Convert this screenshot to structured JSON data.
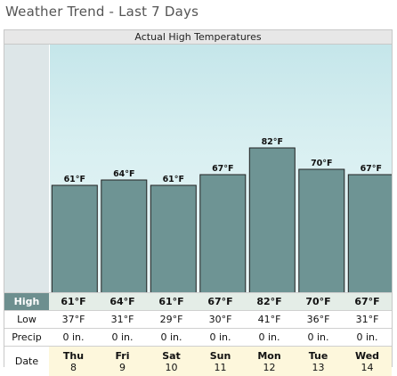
{
  "page": {
    "title": "Weather Trend - Last 7 Days"
  },
  "chart_data": {
    "type": "bar",
    "title": "Actual High Temperatures",
    "categories": [
      "Thu 8",
      "Fri 9",
      "Sat 10",
      "Sun 11",
      "Mon 12",
      "Tue 13",
      "Wed 14"
    ],
    "values": [
      61,
      64,
      61,
      67,
      82,
      70,
      67
    ],
    "value_labels": [
      "61°F",
      "64°F",
      "61°F",
      "67°F",
      "82°F",
      "70°F",
      "67°F"
    ],
    "unit": "°F",
    "bar_color": "#6e9494",
    "grid": false,
    "legend": "none"
  },
  "table": {
    "row_labels": {
      "high": "High",
      "low": "Low",
      "precip": "Precip",
      "date": "Date"
    },
    "days": [
      {
        "day": "Thu",
        "date": "8",
        "high": "61°F",
        "low": "37°F",
        "precip": "0 in."
      },
      {
        "day": "Fri",
        "date": "9",
        "high": "64°F",
        "low": "31°F",
        "precip": "0 in."
      },
      {
        "day": "Sat",
        "date": "10",
        "high": "61°F",
        "low": "29°F",
        "precip": "0 in."
      },
      {
        "day": "Sun",
        "date": "11",
        "high": "67°F",
        "low": "30°F",
        "precip": "0 in."
      },
      {
        "day": "Mon",
        "date": "12",
        "high": "82°F",
        "low": "41°F",
        "precip": "0 in."
      },
      {
        "day": "Tue",
        "date": "13",
        "high": "70°F",
        "low": "36°F",
        "precip": "0 in."
      },
      {
        "day": "Wed",
        "date": "14",
        "high": "67°F",
        "low": "31°F",
        "precip": "0 in."
      }
    ]
  }
}
